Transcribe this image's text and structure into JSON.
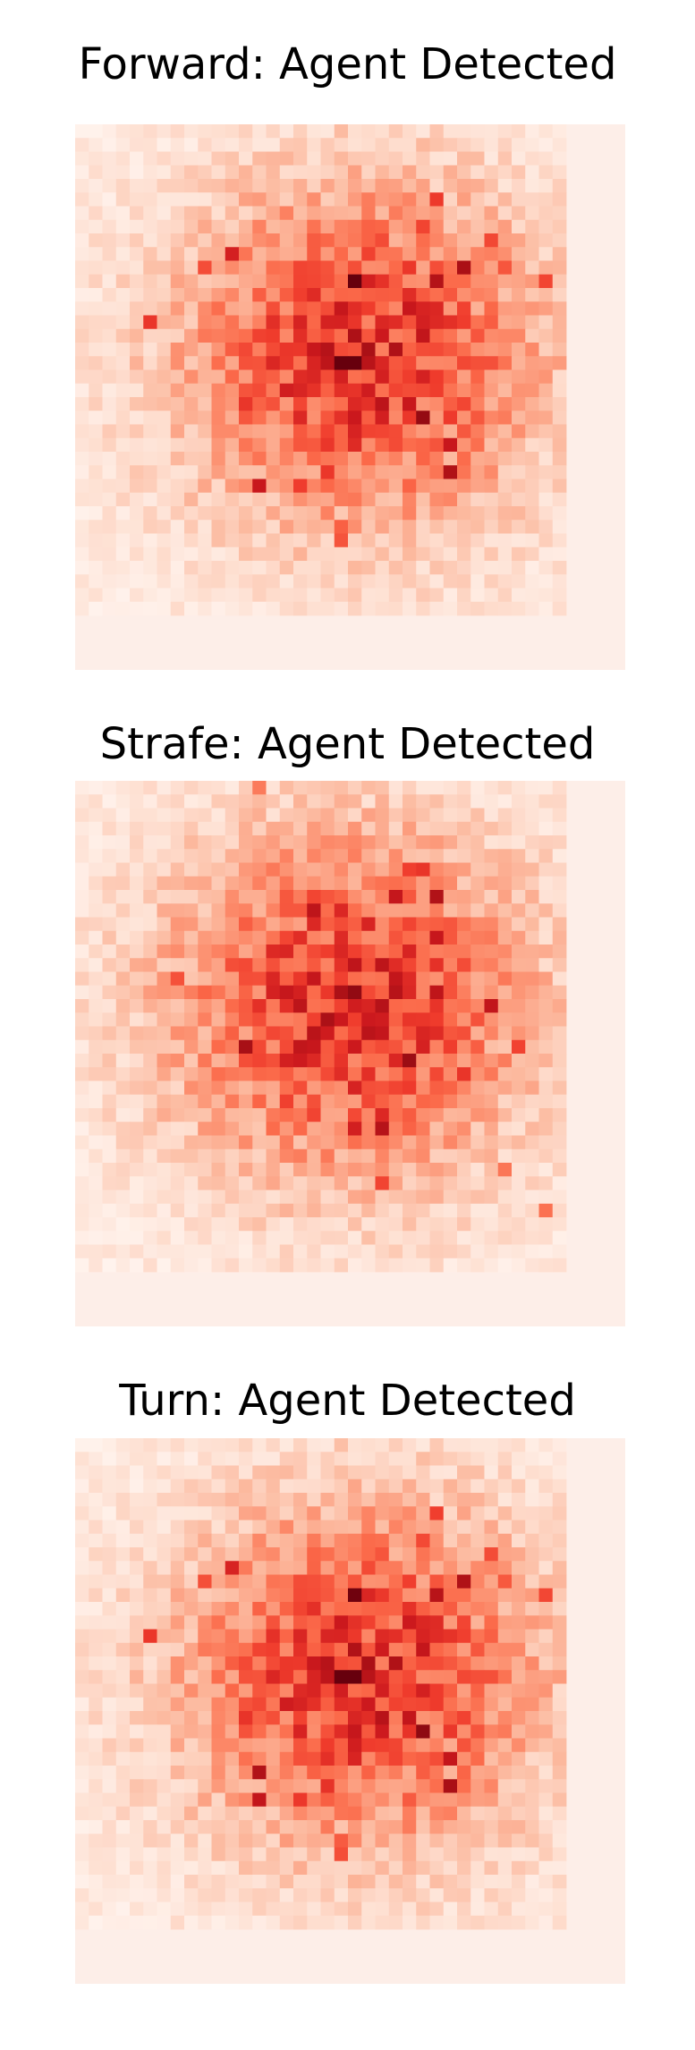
{
  "chart_data": [
    {
      "type": "heatmap",
      "title": "Forward: Agent Detected",
      "colormap": "Reds",
      "grid": false,
      "pattern": {
        "center_col": 20.5,
        "center_row": 16.5,
        "seed": 11
      }
    },
    {
      "type": "heatmap",
      "title": "Strafe: Agent Detected",
      "colormap": "Reds",
      "grid": false,
      "pattern": {
        "center_col": 19.5,
        "center_row": 16.0,
        "seed": 23
      }
    },
    {
      "type": "heatmap",
      "title": "Turn: Agent Detected",
      "colormap": "Reds",
      "grid": false,
      "pattern": {
        "center_col": 20.5,
        "center_row": 17.0,
        "seed": 11
      }
    }
  ],
  "colors": {
    "low": "#fff5f0",
    "high": "#67000d",
    "padding_band": "#fdeee8"
  }
}
